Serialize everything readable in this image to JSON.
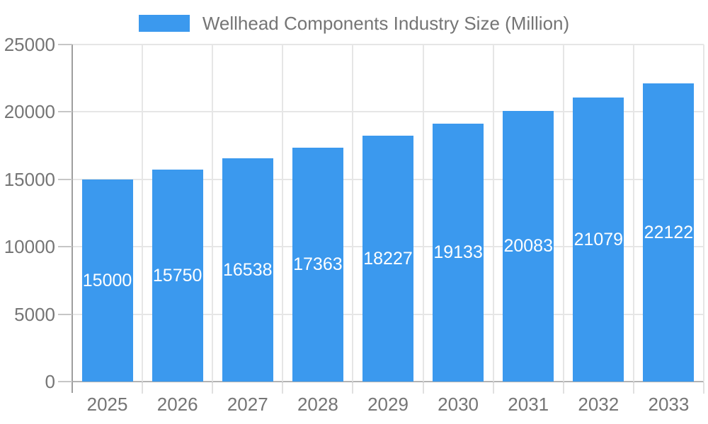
{
  "legend": {
    "series_label": "Wellhead Components Industry Size (Million)"
  },
  "chart_data": {
    "type": "bar",
    "title": "Wellhead Components Industry Size (Million)",
    "categories": [
      "2025",
      "2026",
      "2027",
      "2028",
      "2029",
      "2030",
      "2031",
      "2032",
      "2033"
    ],
    "values": [
      15000,
      15750,
      16538,
      17363,
      18227,
      19133,
      20083,
      21079,
      22122
    ],
    "value_labels": [
      "15000",
      "15750",
      "16538",
      "17363",
      "18227",
      "19133",
      "20083",
      "21079",
      "22122"
    ],
    "xlabel": "",
    "ylabel": "",
    "ylim": [
      0,
      25000
    ],
    "yticks": [
      0,
      5000,
      10000,
      15000,
      20000,
      25000
    ],
    "ytick_labels": [
      "0",
      "5000",
      "10000",
      "15000",
      "20000",
      "25000"
    ],
    "grid": true,
    "legend_position": "top",
    "colors": {
      "bar": "#3b99ee",
      "bar_value_text": "#ffffff",
      "axis_text": "#757575",
      "legend_text": "#757575",
      "gridline": "#e6e6e6",
      "baseline": "#b3b3b3",
      "axis_line": "#9e9e9e",
      "y_tick": "#c6c6c6",
      "x_tick": "#e0e0e0",
      "background": "#ffffff"
    }
  }
}
